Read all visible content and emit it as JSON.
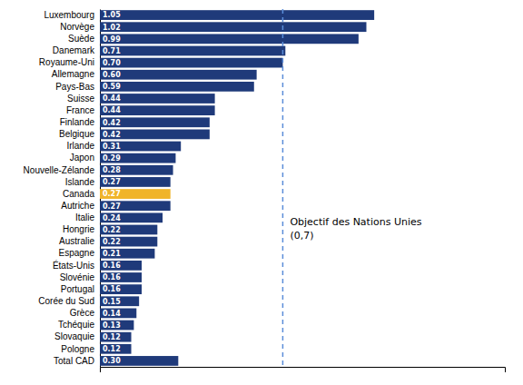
{
  "chart_data": {
    "type": "bar",
    "orientation": "horizontal",
    "categories": [
      "Luxembourg",
      "Norvège",
      "Suède",
      "Danemark",
      "Royaume-Uni",
      "Allemagne",
      "Pays-Bas",
      "Suisse",
      "France",
      "Finlande",
      "Belgique",
      "Irlande",
      "Japon",
      "Nouvelle-Zélande",
      "Islande",
      "Canada",
      "Autriche",
      "Italie",
      "Hongrie",
      "Australie",
      "Espagne",
      "États-Unis",
      "Slovénie",
      "Portugal",
      "Corée du Sud",
      "Grèce",
      "Tchéquie",
      "Slovaquie",
      "Pologne",
      "Total CAD"
    ],
    "values": [
      1.05,
      1.02,
      0.99,
      0.71,
      0.7,
      0.6,
      0.59,
      0.44,
      0.44,
      0.42,
      0.42,
      0.31,
      0.29,
      0.28,
      0.27,
      0.27,
      0.27,
      0.24,
      0.22,
      0.22,
      0.21,
      0.16,
      0.16,
      0.16,
      0.15,
      0.14,
      0.13,
      0.12,
      0.12,
      0.3
    ],
    "value_labels": [
      "1.05",
      "1.02",
      "0.99",
      "0.71",
      "0.70",
      "0.60",
      "0.59",
      "0.44",
      "0.44",
      "0.42",
      "0.42",
      "0.31",
      "0.29",
      "0.28",
      "0.27",
      "0.27",
      "0.27",
      "0.24",
      "0.22",
      "0.22",
      "0.21",
      "0.16",
      "0.16",
      "0.16",
      "0.15",
      "0.14",
      "0.13",
      "0.12",
      "0.12",
      "0.30"
    ],
    "colors": [
      "#1f3a7a",
      "#1f3a7a",
      "#1f3a7a",
      "#1f3a7a",
      "#1f3a7a",
      "#1f3a7a",
      "#1f3a7a",
      "#1f3a7a",
      "#1f3a7a",
      "#1f3a7a",
      "#1f3a7a",
      "#1f3a7a",
      "#1f3a7a",
      "#1f3a7a",
      "#1f3a7a",
      "#f0b429",
      "#1f3a7a",
      "#1f3a7a",
      "#1f3a7a",
      "#1f3a7a",
      "#1f3a7a",
      "#1f3a7a",
      "#1f3a7a",
      "#1f3a7a",
      "#1f3a7a",
      "#1f3a7a",
      "#1f3a7a",
      "#1f3a7a",
      "#1f3a7a",
      "#1f3a7a"
    ],
    "xlim": [
      0,
      1.55
    ],
    "xticks": [],
    "data_labels": true,
    "tick_labels": "y",
    "grid": false,
    "annotations": [
      {
        "text": "Objectif des Nations Unies\n(0,7)",
        "x": 0.7,
        "color": "#5b8dd9"
      }
    ]
  }
}
